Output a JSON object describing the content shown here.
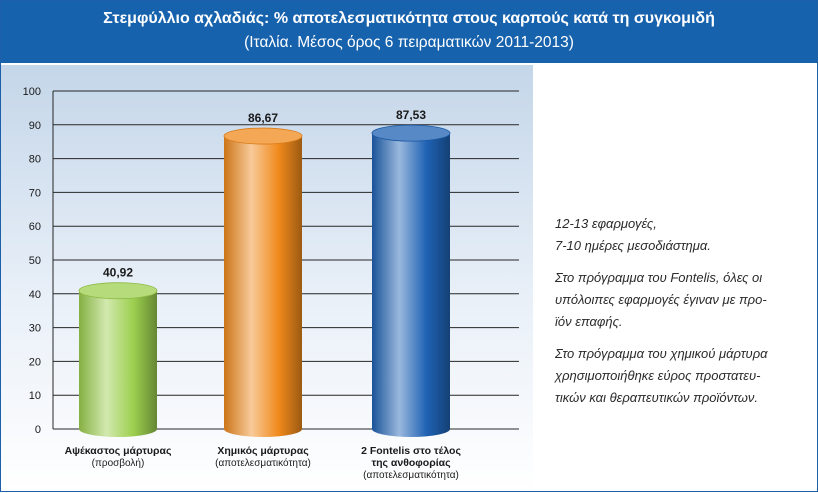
{
  "header": {
    "title": "Στεμφύλλιο αχλαδιάς: % αποτελεσματικότητα στους καρπούς κατά τη συγκομιδή",
    "subtitle": "(Ιταλία. Μέσος όρος 6 πειραματικών 2011-2013)"
  },
  "chart_data": {
    "type": "bar",
    "title": "Στεμφύλλιο αχλαδιάς: % αποτελεσματικότητα στους καρπούς κατά τη συγκομιδή",
    "subtitle": "(Ιταλία. Μέσος όρος 6 πειραματικών 2011-2013)",
    "xlabel": "",
    "ylabel": "",
    "ylim": [
      0,
      100
    ],
    "yticks": [
      0,
      10,
      20,
      30,
      40,
      50,
      60,
      70,
      80,
      90,
      100
    ],
    "grid": true,
    "legend": "none",
    "categories": [
      {
        "main": "Αψέκαστος μάρτυρας",
        "sub": "(προσβολή)"
      },
      {
        "main": "Χημικός μάρτυρας",
        "sub": "(αποτελεσματικότητα)"
      },
      {
        "main": "2 Fontelis στο τέλος",
        "main2": "της ανθοφορίας",
        "sub": "(αποτελεσματικότητα)"
      }
    ],
    "values": [
      40.92,
      86.67,
      87.53
    ],
    "value_labels": [
      "40,92",
      "86,67",
      "87,53"
    ],
    "colors": [
      "#9ccf4e",
      "#f08a1c",
      "#1f62b4"
    ]
  },
  "notes": [
    [
      "12-13 εφαρμογές,",
      "7-10 ημέρες μεσοδιάστημα."
    ],
    [
      "Στο πρόγραμμα του Fontelis, όλες οι",
      "υπόλοιπες εφαρμογές έγιναν με προ-",
      "ϊόν επαφής."
    ],
    [
      "Στο πρόγραμμα του χημικού μάρτυρα",
      "χρησιμοποιήθηκε εύρος προστατευ-",
      "τικών και θεραπευτικών προϊόντων."
    ]
  ]
}
